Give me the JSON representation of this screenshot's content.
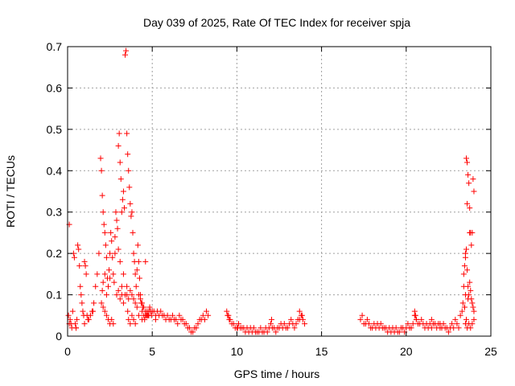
{
  "chart_data": {
    "type": "scatter",
    "title": "Day 039 of 2025, Rate Of TEC Index for receiver spja",
    "xlabel": "GPS time / hours",
    "ylabel": "ROTI / TECUs",
    "xlim": [
      0,
      25
    ],
    "ylim": [
      0,
      0.7
    ],
    "xticks": [
      "0",
      "5",
      "10",
      "15",
      "20",
      "25"
    ],
    "yticks": [
      "0",
      "0.1",
      "0.2",
      "0.3",
      "0.4",
      "0.5",
      "0.6",
      "0.7"
    ],
    "grid": true,
    "marker": "plus",
    "color": "#ff0000",
    "series": [
      {
        "x": [
          0.05,
          0.1,
          0.15,
          0.2,
          0.25,
          0.3,
          0.35,
          0.4,
          0.45,
          0.5,
          0.55,
          0.6,
          0.65,
          0.7,
          0.75,
          0.8,
          0.85,
          0.9,
          0.95,
          1.0,
          1.05,
          1.1,
          1.15,
          1.2,
          1.25,
          1.35,
          1.45,
          1.55,
          1.65,
          1.75,
          1.85,
          1.95,
          2.0,
          2.05,
          2.1,
          2.15,
          2.2,
          2.25,
          2.3,
          2.35,
          2.4,
          2.45,
          2.5,
          2.55,
          2.6,
          2.65,
          2.7,
          2.75,
          2.8,
          2.85,
          2.9,
          2.95,
          3.0,
          3.05,
          3.1,
          3.15,
          3.2,
          3.25,
          3.3,
          3.35,
          3.4,
          3.45,
          3.5,
          3.55,
          3.6,
          3.65,
          3.7,
          3.75,
          3.8,
          3.85,
          3.9,
          3.95,
          4.0,
          4.05,
          4.1,
          4.15,
          4.2,
          4.25,
          4.3,
          4.35,
          4.4,
          4.45,
          4.5,
          4.55,
          4.6,
          4.65,
          4.7,
          4.75,
          4.8,
          4.85,
          4.9,
          4.95,
          5.0,
          5.1,
          5.2,
          5.3,
          5.4,
          5.5,
          5.6,
          5.7,
          5.8,
          5.9,
          6.0,
          6.1,
          6.2,
          6.3,
          6.4,
          6.5,
          6.6,
          6.7,
          6.8,
          6.9,
          7.0,
          7.1,
          7.2,
          7.3,
          7.4,
          7.5,
          7.6,
          7.7,
          7.8,
          7.9,
          8.0,
          8.1,
          8.2,
          8.3,
          2.0,
          2.1,
          2.2,
          2.3,
          2.4,
          2.5,
          2.6,
          2.7,
          2.9,
          3.0,
          3.1,
          3.2,
          3.3,
          3.4,
          3.5,
          3.6,
          3.7,
          3.8,
          3.9,
          4.0,
          4.1,
          4.2,
          4.3,
          4.4,
          4.5,
          4.6,
          4.7,
          3.2,
          3.3,
          3.5,
          3.55,
          3.6,
          3.7,
          3.8,
          3.9,
          4.0,
          4.2,
          4.4,
          2.05,
          2.1,
          2.2,
          2.3,
          3.0,
          3.1,
          0.1,
          0.5,
          1.0,
          1.5,
          2.5,
          2.8,
          4.6,
          4.8,
          5.2,
          9.4,
          9.5,
          9.6,
          9.7,
          9.8,
          9.9,
          10.0,
          10.1,
          10.2,
          10.3,
          10.4,
          10.5,
          10.6,
          10.7,
          10.8,
          10.9,
          11.0,
          11.1,
          11.2,
          11.3,
          11.4,
          11.5,
          11.6,
          11.7,
          11.8,
          11.9,
          12.0,
          12.1,
          12.2,
          12.3,
          12.4,
          12.5,
          12.6,
          12.7,
          12.8,
          12.9,
          13.0,
          13.1,
          13.2,
          13.3,
          13.4,
          13.5,
          13.6,
          13.7,
          13.8,
          13.9,
          14.0,
          9.45,
          9.55,
          10.05,
          12.05,
          13.7,
          13.85,
          17.3,
          17.4,
          17.5,
          17.6,
          17.7,
          17.8,
          17.9,
          18.0,
          18.1,
          18.2,
          18.3,
          18.4,
          18.5,
          18.6,
          18.7,
          18.8,
          18.9,
          19.0,
          19.1,
          19.2,
          19.3,
          19.4,
          19.5,
          19.6,
          19.7,
          19.8,
          19.9,
          20.0,
          20.1,
          20.2,
          20.3,
          20.4,
          20.5,
          20.6,
          20.7,
          20.8,
          20.9,
          21.0,
          21.1,
          21.2,
          21.3,
          21.4,
          21.5,
          21.6,
          21.7,
          21.8,
          21.9,
          22.0,
          22.1,
          22.2,
          22.3,
          22.4,
          22.5,
          22.6,
          22.7,
          22.8,
          22.9,
          23.0,
          23.1,
          23.2,
          23.3,
          23.35,
          23.4,
          23.45,
          23.5,
          23.55,
          23.6,
          23.65,
          23.7,
          23.75,
          23.8,
          23.85,
          23.9,
          23.95,
          24.0,
          20.5,
          20.55,
          20.6,
          21.5,
          22.0,
          23.4,
          23.45,
          23.5,
          23.55,
          23.6,
          23.65,
          23.7,
          23.75,
          23.8,
          23.85,
          23.9,
          23.95,
          24.0,
          23.5,
          23.55,
          23.6,
          23.7,
          23.8,
          23.9,
          24.0,
          23.45,
          23.65,
          23.75,
          23.5,
          23.6
        ],
        "y": [
          0.05,
          0.27,
          0.04,
          0.03,
          0.02,
          0.06,
          0.2,
          0.19,
          0.03,
          0.02,
          0.04,
          0.22,
          0.21,
          0.17,
          0.12,
          0.1,
          0.08,
          0.06,
          0.05,
          0.18,
          0.17,
          0.15,
          0.05,
          0.04,
          0.04,
          0.05,
          0.06,
          0.08,
          0.12,
          0.15,
          0.2,
          0.43,
          0.4,
          0.34,
          0.3,
          0.27,
          0.25,
          0.22,
          0.19,
          0.14,
          0.12,
          0.16,
          0.2,
          0.25,
          0.23,
          0.19,
          0.15,
          0.13,
          0.24,
          0.3,
          0.28,
          0.26,
          0.46,
          0.49,
          0.42,
          0.38,
          0.3,
          0.33,
          0.35,
          0.31,
          0.68,
          0.69,
          0.49,
          0.44,
          0.4,
          0.36,
          0.32,
          0.29,
          0.3,
          0.25,
          0.2,
          0.18,
          0.15,
          0.12,
          0.16,
          0.22,
          0.18,
          0.14,
          0.1,
          0.08,
          0.06,
          0.07,
          0.05,
          0.04,
          0.06,
          0.05,
          0.05,
          0.05,
          0.06,
          0.07,
          0.06,
          0.05,
          0.06,
          0.06,
          0.05,
          0.06,
          0.05,
          0.06,
          0.05,
          0.05,
          0.04,
          0.05,
          0.04,
          0.04,
          0.05,
          0.04,
          0.04,
          0.03,
          0.05,
          0.04,
          0.04,
          0.03,
          0.03,
          0.02,
          0.02,
          0.01,
          0.01,
          0.02,
          0.02,
          0.03,
          0.04,
          0.04,
          0.05,
          0.04,
          0.06,
          0.05,
          0.08,
          0.07,
          0.06,
          0.05,
          0.04,
          0.03,
          0.04,
          0.03,
          0.1,
          0.11,
          0.09,
          0.1,
          0.08,
          0.1,
          0.12,
          0.09,
          0.11,
          0.1,
          0.09,
          0.08,
          0.07,
          0.1,
          0.09,
          0.08,
          0.07,
          0.05,
          0.06,
          0.12,
          0.15,
          0.1,
          0.06,
          0.04,
          0.03,
          0.05,
          0.04,
          0.03,
          0.05,
          0.04,
          0.11,
          0.13,
          0.15,
          0.1,
          0.21,
          0.18,
          0.03,
          0.02,
          0.03,
          0.06,
          0.14,
          0.2,
          0.18,
          0.05,
          0.04,
          0.06,
          0.05,
          0.04,
          0.03,
          0.03,
          0.02,
          0.02,
          0.03,
          0.02,
          0.02,
          0.02,
          0.01,
          0.02,
          0.01,
          0.02,
          0.01,
          0.02,
          0.01,
          0.01,
          0.01,
          0.02,
          0.01,
          0.01,
          0.02,
          0.01,
          0.02,
          0.03,
          0.02,
          0.02,
          0.01,
          0.02,
          0.02,
          0.03,
          0.02,
          0.03,
          0.02,
          0.02,
          0.03,
          0.04,
          0.03,
          0.02,
          0.03,
          0.04,
          0.04,
          0.05,
          0.04,
          0.03,
          0.05,
          0.04,
          0.02,
          0.04,
          0.06,
          0.05,
          0.04,
          0.05,
          0.03,
          0.03,
          0.04,
          0.03,
          0.02,
          0.02,
          0.03,
          0.02,
          0.03,
          0.02,
          0.03,
          0.02,
          0.02,
          0.02,
          0.01,
          0.02,
          0.01,
          0.02,
          0.01,
          0.02,
          0.01,
          0.01,
          0.02,
          0.02,
          0.01,
          0.02,
          0.03,
          0.02,
          0.02,
          0.03,
          0.05,
          0.04,
          0.03,
          0.03,
          0.04,
          0.03,
          0.02,
          0.03,
          0.02,
          0.03,
          0.02,
          0.03,
          0.03,
          0.02,
          0.03,
          0.02,
          0.02,
          0.03,
          0.02,
          0.02,
          0.01,
          0.02,
          0.03,
          0.02,
          0.04,
          0.03,
          0.02,
          0.05,
          0.06,
          0.08,
          0.12,
          0.07,
          0.2,
          0.43,
          0.42,
          0.39,
          0.37,
          0.31,
          0.25,
          0.22,
          0.25,
          0.38,
          0.35,
          0.06,
          0.05,
          0.04,
          0.04,
          0.03,
          0.15,
          0.17,
          0.19,
          0.21,
          0.16,
          0.12,
          0.1,
          0.13,
          0.11,
          0.09,
          0.08,
          0.07,
          0.06,
          0.03,
          0.04,
          0.02,
          0.03,
          0.02,
          0.03,
          0.04,
          0.07,
          0.09,
          0.25,
          0.1,
          0.32
        ]
      }
    ]
  }
}
